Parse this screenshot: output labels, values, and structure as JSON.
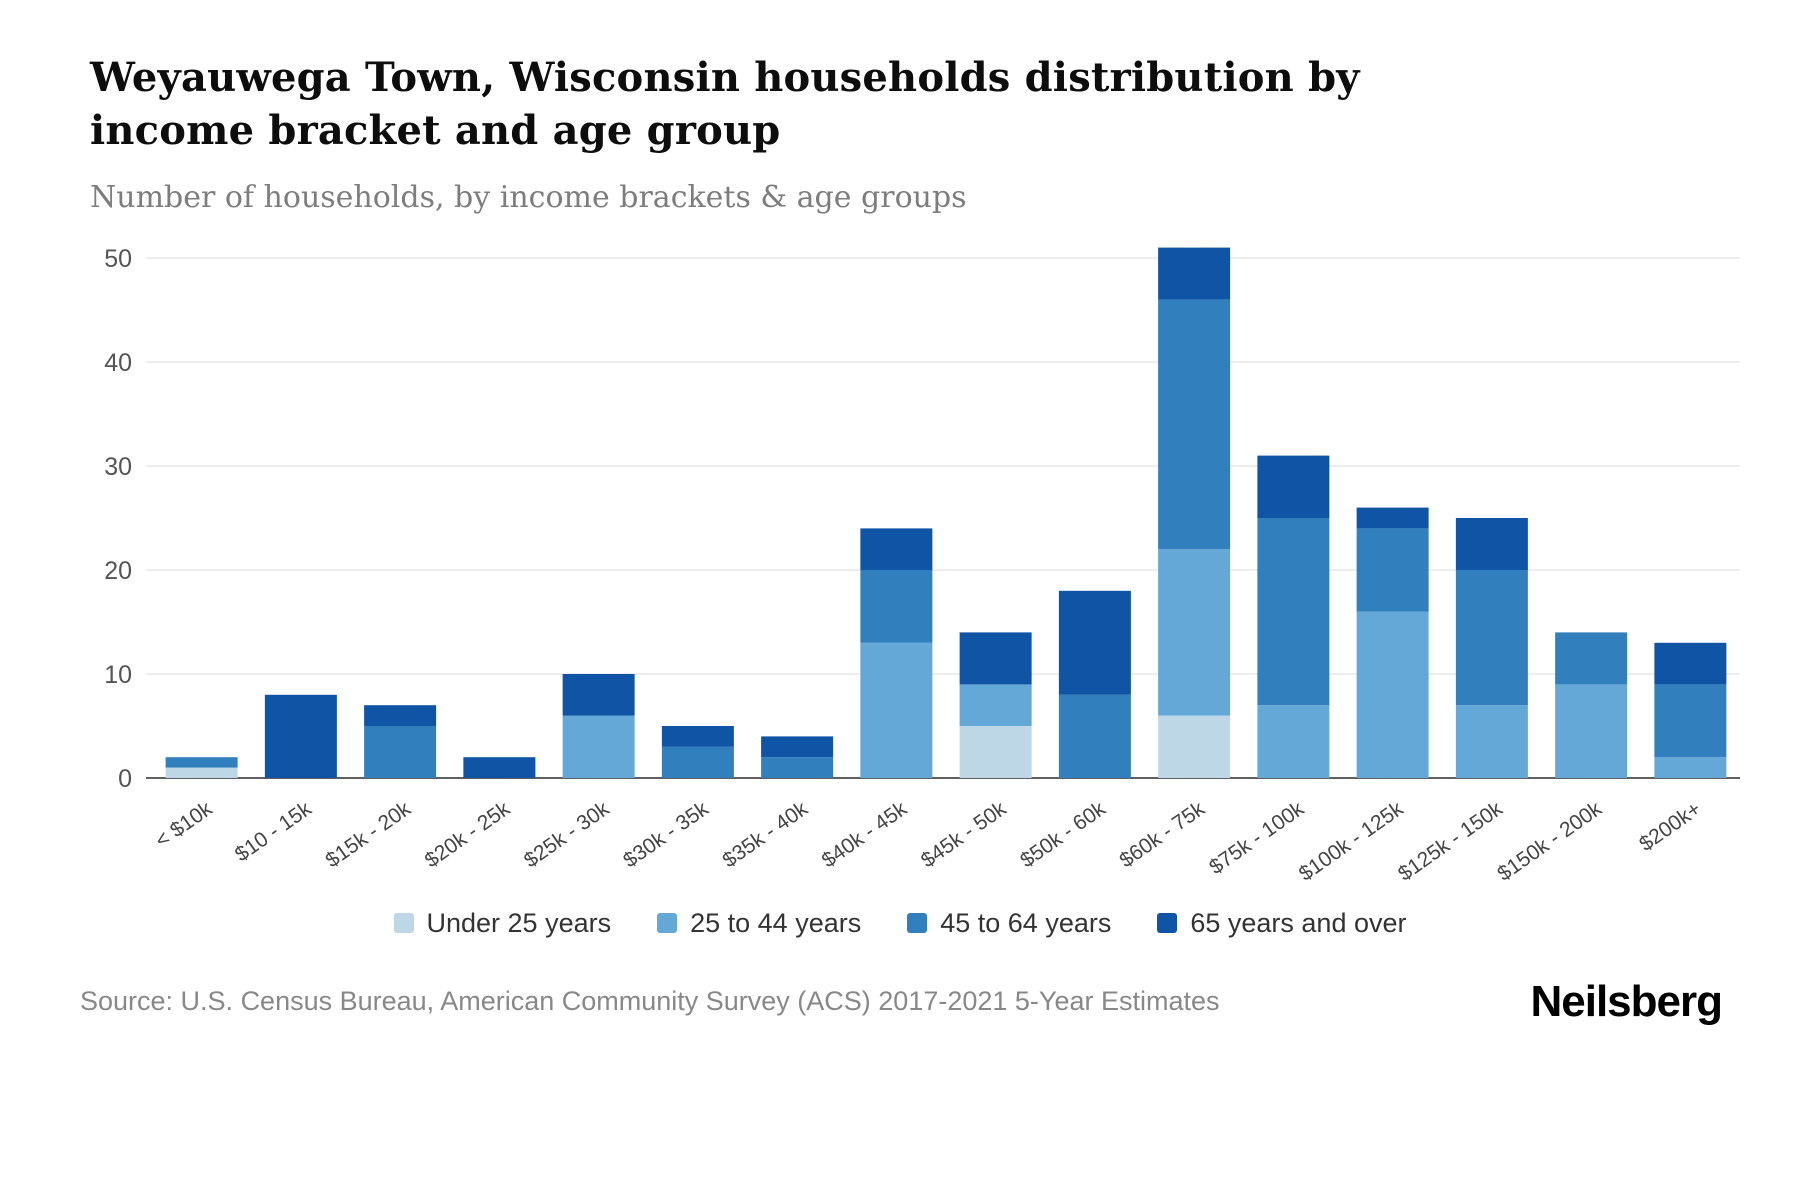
{
  "title": "Weyauwega Town, Wisconsin households distribution by income bracket and age group",
  "subtitle": "Number of households, by income brackets & age groups",
  "source": "Source: U.S. Census Bureau, American Community Survey (ACS) 2017-2021 5-Year Estimates",
  "brand": "Neilsberg",
  "chart_data": {
    "type": "bar",
    "stacked": true,
    "title": "Weyauwega Town, Wisconsin households distribution by income bracket and age group",
    "xlabel": "",
    "ylabel": "Number of households",
    "ylim": [
      0,
      50
    ],
    "yticks": [
      0,
      10,
      20,
      30,
      40,
      50
    ],
    "grid": true,
    "legend_position": "bottom",
    "categories": [
      "< $10k",
      "$10 - 15k",
      "$15k - 20k",
      "$20k - 25k",
      "$25k - 30k",
      "$30k - 35k",
      "$35k - 40k",
      "$40k - 45k",
      "$45k - 50k",
      "$50k - 60k",
      "$60k - 75k",
      "$75k - 100k",
      "$100k - 125k",
      "$125k - 150k",
      "$150k - 200k",
      "$200k+"
    ],
    "series": [
      {
        "name": "Under 25 years",
        "color": "#bdd7e7",
        "values": [
          1,
          0,
          0,
          0,
          0,
          0,
          0,
          0,
          5,
          0,
          6,
          0,
          0,
          0,
          0,
          0
        ]
      },
      {
        "name": "25 to 44 years",
        "color": "#63a8d7",
        "values": [
          0,
          0,
          0,
          0,
          6,
          0,
          0,
          13,
          4,
          0,
          16,
          7,
          16,
          7,
          9,
          2
        ]
      },
      {
        "name": "45 to 64 years",
        "color": "#3180bd",
        "values": [
          1,
          0,
          5,
          0,
          0,
          3,
          2,
          7,
          0,
          8,
          24,
          18,
          8,
          13,
          5,
          7
        ]
      },
      {
        "name": "65 years and over",
        "color": "#1054a5",
        "values": [
          0,
          8,
          2,
          2,
          4,
          2,
          2,
          4,
          5,
          10,
          5,
          6,
          2,
          5,
          0,
          4
        ]
      }
    ]
  }
}
